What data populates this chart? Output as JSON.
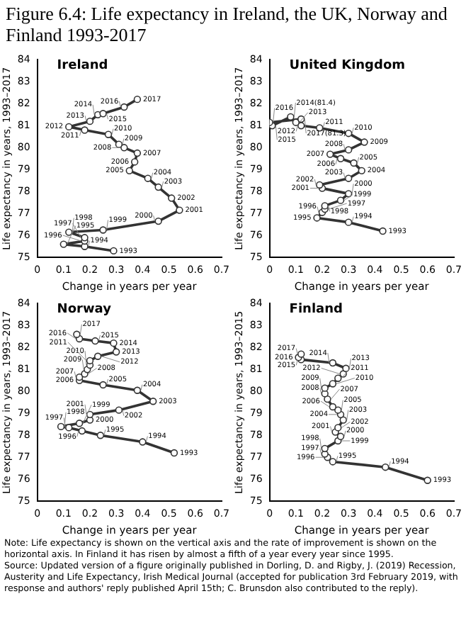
{
  "chart_data": [
    {
      "type": "other",
      "title": "Figure 6.4: Life expectancy in Ireland, the UK, Norway and Finland 1993-2017"
    },
    {
      "type": "line",
      "title": "Ireland",
      "xlabel": "Change in years per year",
      "ylabel": "Life expectancy in years, 1993–2017",
      "xlim": [
        0,
        0.7
      ],
      "xticks": [
        0,
        0.1,
        0.2,
        0.3,
        0.4,
        0.5,
        0.6,
        0.7
      ],
      "ylim": [
        75,
        84
      ],
      "yticks": [
        75,
        76,
        77,
        78,
        79,
        80,
        81,
        82,
        83,
        84
      ],
      "marker": "circle",
      "legend": false,
      "series": [
        {
          "color": "#333333",
          "x": [
            0.29,
            0.18,
            0.1,
            0.18,
            0.18,
            0.12,
            0.25,
            0.46,
            0.54,
            0.51,
            0.46,
            0.42,
            0.35,
            0.37,
            0.38,
            0.33,
            0.31,
            0.27,
            0.18,
            0.12,
            0.2,
            0.23,
            0.25,
            0.33,
            0.38
          ],
          "values": [
            75.3,
            75.5,
            75.6,
            75.75,
            75.9,
            76.15,
            76.25,
            76.65,
            77.15,
            77.7,
            78.2,
            78.6,
            78.95,
            79.35,
            79.75,
            80.0,
            80.15,
            80.6,
            80.8,
            80.95,
            81.2,
            81.5,
            81.55,
            81.85,
            82.2
          ]
        }
      ],
      "annotations": [
        {
          "text": "1993",
          "x": 0.29,
          "y": 75.3
        },
        {
          "text": "1994",
          "x": 0.18,
          "y": 75.5
        },
        {
          "text": "1995",
          "x": 0.1,
          "y": 75.6
        },
        {
          "text": "1996",
          "x": 0.18,
          "y": 75.75
        },
        {
          "text": "1997",
          "x": 0.18,
          "y": 75.9
        },
        {
          "text": "1998",
          "x": 0.12,
          "y": 76.15
        },
        {
          "text": "1999",
          "x": 0.25,
          "y": 76.25
        },
        {
          "text": "2000",
          "x": 0.46,
          "y": 76.65
        },
        {
          "text": "2001",
          "x": 0.54,
          "y": 77.15
        },
        {
          "text": "2002",
          "x": 0.51,
          "y": 77.7
        },
        {
          "text": "2003",
          "x": 0.46,
          "y": 78.2
        },
        {
          "text": "2004",
          "x": 0.42,
          "y": 78.6
        },
        {
          "text": "2005",
          "x": 0.35,
          "y": 78.95
        },
        {
          "text": "2006",
          "x": 0.37,
          "y": 79.35
        },
        {
          "text": "2007",
          "x": 0.38,
          "y": 79.75
        },
        {
          "text": "2008",
          "x": 0.33,
          "y": 80.0
        },
        {
          "text": "2009",
          "x": 0.31,
          "y": 80.15
        },
        {
          "text": "2010",
          "x": 0.27,
          "y": 80.6
        },
        {
          "text": "2011",
          "x": 0.18,
          "y": 80.8
        },
        {
          "text": "2012",
          "x": 0.12,
          "y": 80.95
        },
        {
          "text": "2013",
          "x": 0.2,
          "y": 81.2
        },
        {
          "text": "2014",
          "x": 0.23,
          "y": 81.5
        },
        {
          "text": "2015",
          "x": 0.25,
          "y": 81.55
        },
        {
          "text": "2016",
          "x": 0.33,
          "y": 81.85
        },
        {
          "text": "2017",
          "x": 0.38,
          "y": 82.2
        }
      ]
    },
    {
      "type": "line",
      "title": "United Kingdom",
      "xlabel": "Change in years per year",
      "ylabel": "Life expectancy in years, 1993–2017",
      "xlim": [
        0,
        0.7
      ],
      "xticks": [
        0,
        0.1,
        0.2,
        0.3,
        0.4,
        0.5,
        0.6,
        0.7
      ],
      "ylim": [
        75,
        84
      ],
      "yticks": [
        75,
        76,
        77,
        78,
        79,
        80,
        81,
        82,
        83,
        84
      ],
      "marker": "circle",
      "legend": false,
      "series": [
        {
          "color": "#333333",
          "x": [
            0.43,
            0.3,
            0.18,
            0.2,
            0.21,
            0.21,
            0.27,
            0.3,
            0.2,
            0.19,
            0.3,
            0.35,
            0.32,
            0.27,
            0.23,
            0.3,
            0.36,
            0.3,
            0.19,
            0.12,
            0.1,
            0.08,
            0.01,
            0.0,
            0.12
          ],
          "values": [
            76.2,
            76.6,
            76.8,
            77.05,
            77.2,
            77.35,
            77.6,
            77.9,
            78.15,
            78.3,
            78.6,
            78.95,
            79.3,
            79.5,
            79.7,
            79.9,
            80.25,
            80.65,
            80.9,
            81.0,
            81.15,
            81.4,
            81.0,
            81.15,
            81.3
          ]
        }
      ],
      "annotations": [
        {
          "text": "1993",
          "x": 0.43,
          "y": 76.2
        },
        {
          "text": "1994",
          "x": 0.3,
          "y": 76.6
        },
        {
          "text": "1995",
          "x": 0.18,
          "y": 76.8
        },
        {
          "text": "1996",
          "x": 0.2,
          "y": 77.05
        },
        {
          "text": "1997",
          "x": 0.21,
          "y": 77.2
        },
        {
          "text": "1998",
          "x": 0.21,
          "y": 77.35
        },
        {
          "text": "1999",
          "x": 0.27,
          "y": 77.6
        },
        {
          "text": "2000",
          "x": 0.3,
          "y": 77.9
        },
        {
          "text": "2001",
          "x": 0.2,
          "y": 78.15
        },
        {
          "text": "2002",
          "x": 0.19,
          "y": 78.3
        },
        {
          "text": "2003",
          "x": 0.3,
          "y": 78.6
        },
        {
          "text": "2004",
          "x": 0.35,
          "y": 78.95
        },
        {
          "text": "2005",
          "x": 0.32,
          "y": 79.3
        },
        {
          "text": "2006",
          "x": 0.27,
          "y": 79.5
        },
        {
          "text": "2007",
          "x": 0.23,
          "y": 79.7
        },
        {
          "text": "2008",
          "x": 0.3,
          "y": 79.9
        },
        {
          "text": "2009",
          "x": 0.36,
          "y": 80.25
        },
        {
          "text": "2010",
          "x": 0.3,
          "y": 80.65
        },
        {
          "text": "2011",
          "x": 0.19,
          "y": 80.9
        },
        {
          "text": "2012",
          "x": 0.12,
          "y": 81.0
        },
        {
          "text": "2013",
          "x": 0.1,
          "y": 81.15
        },
        {
          "text": "2014(81.4)",
          "x": 0.08,
          "y": 81.4
        },
        {
          "text": "2015",
          "x": 0.01,
          "y": 81.0
        },
        {
          "text": "2016",
          "x": 0.0,
          "y": 81.15
        },
        {
          "text": "2017(81.3)",
          "x": 0.12,
          "y": 81.3
        }
      ]
    },
    {
      "type": "line",
      "title": "Norway",
      "xlabel": "Change in years per year",
      "ylabel": "Life expectancy in years, 1993–2017",
      "xlim": [
        0,
        0.7
      ],
      "xticks": [
        0,
        0.1,
        0.2,
        0.3,
        0.4,
        0.5,
        0.6,
        0.7
      ],
      "ylim": [
        75,
        84
      ],
      "yticks": [
        75,
        76,
        77,
        78,
        79,
        80,
        81,
        82,
        83,
        84
      ],
      "marker": "circle",
      "legend": false,
      "series": [
        {
          "color": "#333333",
          "x": [
            0.52,
            0.4,
            0.24,
            0.17,
            0.12,
            0.09,
            0.16,
            0.2,
            0.2,
            0.31,
            0.44,
            0.38,
            0.25,
            0.16,
            0.16,
            0.18,
            0.19,
            0.2,
            0.2,
            0.23,
            0.3,
            0.29,
            0.22,
            0.16,
            0.15
          ],
          "values": [
            77.2,
            77.7,
            78.0,
            78.2,
            78.35,
            78.4,
            78.55,
            78.7,
            78.95,
            79.15,
            79.55,
            80.05,
            80.3,
            80.5,
            80.65,
            80.8,
            81.0,
            81.2,
            81.4,
            81.6,
            81.8,
            82.2,
            82.3,
            82.4,
            82.6
          ]
        }
      ],
      "annotations": [
        {
          "text": "1993",
          "x": 0.52,
          "y": 77.2
        },
        {
          "text": "1994",
          "x": 0.4,
          "y": 77.7
        },
        {
          "text": "1995",
          "x": 0.24,
          "y": 78.0
        },
        {
          "text": "1996",
          "x": 0.17,
          "y": 78.2
        },
        {
          "text": "1997",
          "x": 0.12,
          "y": 78.35
        },
        {
          "text": "1998",
          "x": 0.09,
          "y": 78.4
        },
        {
          "text": "1999",
          "x": 0.16,
          "y": 78.55
        },
        {
          "text": "2000",
          "x": 0.2,
          "y": 78.7
        },
        {
          "text": "2001",
          "x": 0.2,
          "y": 78.95
        },
        {
          "text": "2002",
          "x": 0.31,
          "y": 79.15
        },
        {
          "text": "2003",
          "x": 0.44,
          "y": 79.55
        },
        {
          "text": "2004",
          "x": 0.38,
          "y": 80.05
        },
        {
          "text": "2005",
          "x": 0.25,
          "y": 80.3
        },
        {
          "text": "2006",
          "x": 0.16,
          "y": 80.5
        },
        {
          "text": "2007",
          "x": 0.16,
          "y": 80.65
        },
        {
          "text": "2008",
          "x": 0.18,
          "y": 80.8
        },
        {
          "text": "2009",
          "x": 0.19,
          "y": 81.0
        },
        {
          "text": "2010",
          "x": 0.2,
          "y": 81.2
        },
        {
          "text": "2011",
          "x": 0.2,
          "y": 81.4
        },
        {
          "text": "2012",
          "x": 0.23,
          "y": 81.6
        },
        {
          "text": "2013",
          "x": 0.3,
          "y": 81.8
        },
        {
          "text": "2014",
          "x": 0.29,
          "y": 82.2
        },
        {
          "text": "2015",
          "x": 0.22,
          "y": 82.3
        },
        {
          "text": "2016",
          "x": 0.16,
          "y": 82.4
        },
        {
          "text": "2017",
          "x": 0.15,
          "y": 82.6
        }
      ]
    },
    {
      "type": "line",
      "title": "Finland",
      "xlabel": "Change in years per year",
      "ylabel": "Life expectancy in years, 1993–2015",
      "xlim": [
        0,
        0.7
      ],
      "xticks": [
        0,
        0.1,
        0.2,
        0.3,
        0.4,
        0.5,
        0.6,
        0.7
      ],
      "ylim": [
        75,
        84
      ],
      "yticks": [
        75,
        76,
        77,
        78,
        79,
        80,
        81,
        82,
        83,
        84
      ],
      "marker": "circle",
      "legend": false,
      "series": [
        {
          "color": "#333333",
          "x": [
            0.6,
            0.44,
            0.24,
            0.22,
            0.21,
            0.21,
            0.26,
            0.27,
            0.25,
            0.26,
            0.28,
            0.27,
            0.26,
            0.24,
            0.22,
            0.21,
            0.21,
            0.24,
            0.26,
            0.28,
            0.29,
            0.24,
            0.12,
            0.11,
            0.12
          ],
          "values": [
            75.95,
            76.55,
            76.8,
            77.0,
            77.15,
            77.4,
            77.75,
            77.95,
            78.15,
            78.35,
            78.7,
            78.95,
            79.15,
            79.3,
            79.65,
            79.9,
            80.15,
            80.35,
            80.6,
            80.8,
            81.05,
            81.3,
            81.45,
            81.55,
            81.7
          ]
        }
      ],
      "annotations": [
        {
          "text": "1993",
          "x": 0.6,
          "y": 75.95
        },
        {
          "text": "1994",
          "x": 0.44,
          "y": 76.55
        },
        {
          "text": "1995",
          "x": 0.24,
          "y": 76.8
        },
        {
          "text": "1996",
          "x": 0.22,
          "y": 77.0
        },
        {
          "text": "1997",
          "x": 0.21,
          "y": 77.15
        },
        {
          "text": "1998",
          "x": 0.21,
          "y": 77.4
        },
        {
          "text": "1999",
          "x": 0.26,
          "y": 77.75
        },
        {
          "text": "2000",
          "x": 0.27,
          "y": 77.95
        },
        {
          "text": "2001",
          "x": 0.25,
          "y": 78.15
        },
        {
          "text": "2002",
          "x": 0.26,
          "y": 78.35
        },
        {
          "text": "2003",
          "x": 0.28,
          "y": 78.7
        },
        {
          "text": "2004",
          "x": 0.27,
          "y": 78.95
        },
        {
          "text": "2005",
          "x": 0.26,
          "y": 79.15
        },
        {
          "text": "2006",
          "x": 0.24,
          "y": 79.3
        },
        {
          "text": "2007",
          "x": 0.22,
          "y": 79.65
        },
        {
          "text": "2008",
          "x": 0.21,
          "y": 79.9
        },
        {
          "text": "2009",
          "x": 0.21,
          "y": 80.15
        },
        {
          "text": "2010",
          "x": 0.24,
          "y": 80.35
        },
        {
          "text": "2011",
          "x": 0.26,
          "y": 80.6
        },
        {
          "text": "2012",
          "x": 0.28,
          "y": 80.8
        },
        {
          "text": "2013",
          "x": 0.29,
          "y": 81.05
        },
        {
          "text": "2014",
          "x": 0.24,
          "y": 81.3
        },
        {
          "text": "2015",
          "x": 0.12,
          "y": 81.45
        },
        {
          "text": "2016",
          "x": 0.11,
          "y": 81.55
        },
        {
          "text": "2017",
          "x": 0.12,
          "y": 81.7
        }
      ]
    },
    {
      "type": "other",
      "annotations": [
        "Note: Life expectancy is shown on the vertical axis and the rate of improvement is shown on the horizontal axis. In Finland it has risen by almost a fifth of a year every year since 1995.",
        "Source: Updated version of a figure originally published in Dorling, D. and Rigby, J. (2019) Recession, Austerity and Life Expectancy, Irish Medical Journal (accepted for publication 3rd February 2019, with response and authors' reply published April 15th; C. Brunsdon also contributed to the reply)."
      ]
    }
  ]
}
